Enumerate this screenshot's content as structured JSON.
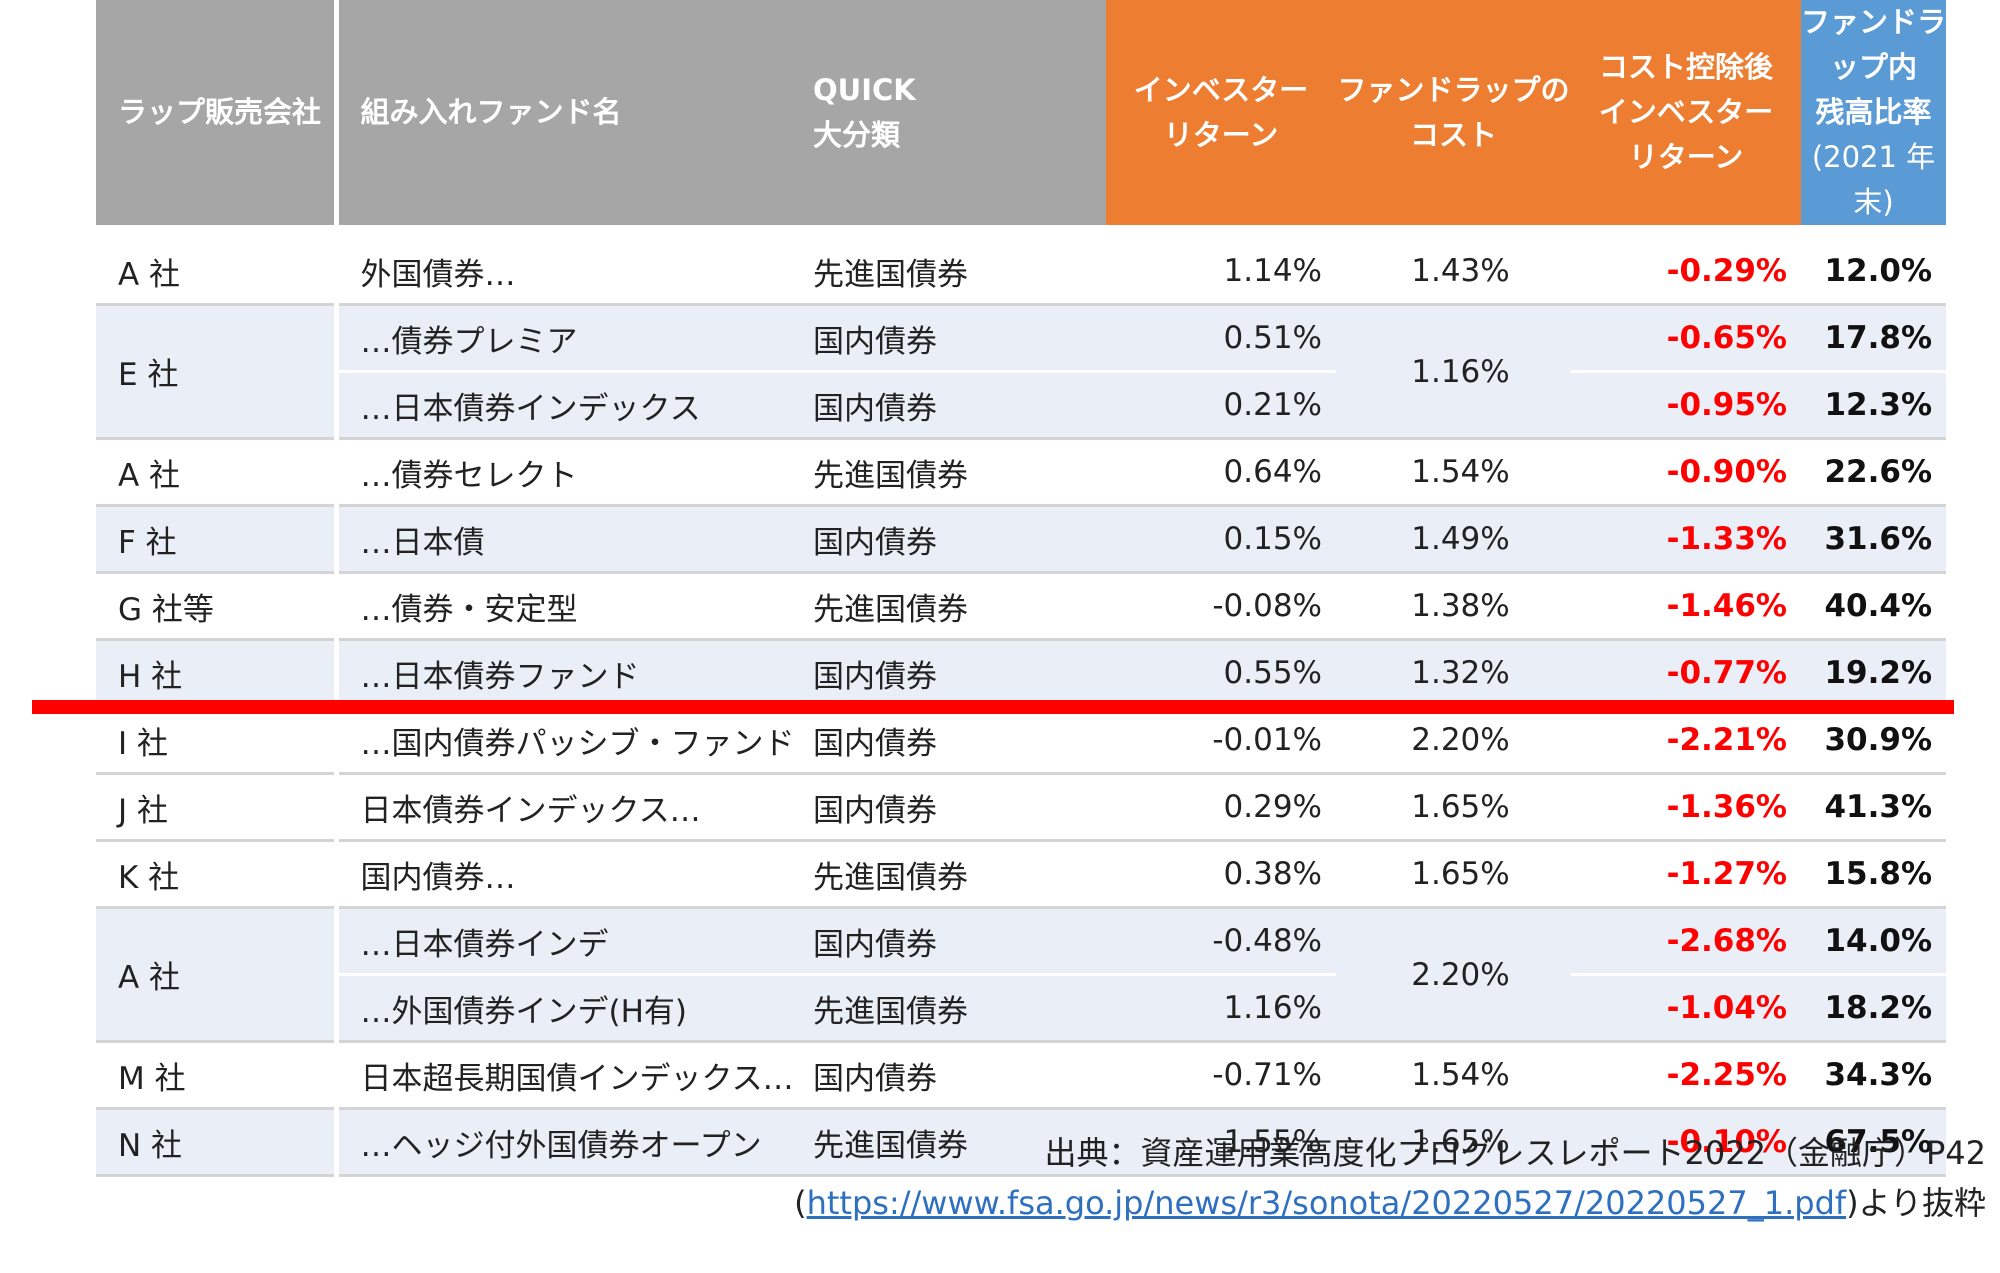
{
  "headers": {
    "company": "ラップ販売会社",
    "fund": "組み入れファンド名",
    "quick_1": "QUICK",
    "quick_2": "大分類",
    "investor_return_1": "インベスター",
    "investor_return_2": "リターン",
    "cost_1": "ファンドラップの",
    "cost_2": "コスト",
    "after_cost_1": "コスト控除後",
    "after_cost_2": "インベスター",
    "after_cost_3": "リターン",
    "ratio_1": "ファンドラップ内",
    "ratio_2": "残高比率",
    "ratio_3": "(2021 年末)"
  },
  "colors": {
    "gray_header": "#a6a6a6",
    "orange_header": "#ed7d31",
    "blue_header": "#5b9bd5",
    "negative": "#ff0000",
    "band": "#eaeff7",
    "highlight_line": "#ff0000"
  },
  "rows": [
    {
      "company": "A 社",
      "fund": "外国債券…",
      "category": "先進国債券",
      "return": "1.14%",
      "cost": "1.43%",
      "after": "-0.29%",
      "ratio": "12.0%"
    },
    {
      "company": "E 社",
      "fund": "…債券プレミア",
      "category": "国内債券",
      "return": "0.51%",
      "cost": "1.16%",
      "after": "-0.65%",
      "ratio": "17.8%"
    },
    {
      "company": "",
      "fund": "…日本債券インデックス",
      "category": "国内債券",
      "return": "0.21%",
      "cost": "",
      "after": "-0.95%",
      "ratio": "12.3%"
    },
    {
      "company": "A 社",
      "fund": "…債券セレクト",
      "category": "先進国債券",
      "return": "0.64%",
      "cost": "1.54%",
      "after": "-0.90%",
      "ratio": "22.6%"
    },
    {
      "company": "F 社",
      "fund": "…日本債",
      "category": "国内債券",
      "return": "0.15%",
      "cost": "1.49%",
      "after": "-1.33%",
      "ratio": "31.6%"
    },
    {
      "company": "G 社等",
      "fund": "…債券・安定型",
      "category": "先進国債券",
      "return": "-0.08%",
      "cost": "1.38%",
      "after": "-1.46%",
      "ratio": "40.4%"
    },
    {
      "company": "H 社",
      "fund": "…日本債券ファンド",
      "category": "国内債券",
      "return": "0.55%",
      "cost": "1.32%",
      "after": "-0.77%",
      "ratio": "19.2%"
    },
    {
      "company": "I 社",
      "fund": "…国内債券パッシブ・ファンド",
      "category": "国内債券",
      "return": "-0.01%",
      "cost": "2.20%",
      "after": "-2.21%",
      "ratio": "30.9%"
    },
    {
      "company": "J 社",
      "fund": "日本債券インデックス…",
      "category": "国内債券",
      "return": "0.29%",
      "cost": "1.65%",
      "after": "-1.36%",
      "ratio": "41.3%"
    },
    {
      "company": "K 社",
      "fund": "国内債券…",
      "category": "先進国債券",
      "return": "0.38%",
      "cost": "1.65%",
      "after": "-1.27%",
      "ratio": "15.8%"
    },
    {
      "company": "A 社",
      "fund": "…日本債券インデ",
      "category": "国内債券",
      "return": "-0.48%",
      "cost": "2.20%",
      "after": "-2.68%",
      "ratio": "14.0%"
    },
    {
      "company": "",
      "fund": "…外国債券インデ(H有)",
      "category": "先進国債券",
      "return": "1.16%",
      "cost": "",
      "after": "-1.04%",
      "ratio": "18.2%"
    },
    {
      "company": "M 社",
      "fund": "日本超長期国債インデックス…",
      "category": "国内債券",
      "return": "-0.71%",
      "cost": "1.54%",
      "after": "-2.25%",
      "ratio": "34.3%"
    },
    {
      "company": "N 社",
      "fund": "…ヘッジ付外国債券オープン",
      "category": "先進国債券",
      "return": "1.55%",
      "cost": "1.65%",
      "after": "-0.10%",
      "ratio": "67.5%"
    }
  ],
  "source": {
    "line1": "出典：資産運用業高度化プログレスレポート2022（金融庁）P42",
    "open_paren": "(",
    "url": "https://www.fsa.go.jp/news/r3/sonota/20220527/20220527_1.pdf",
    "suffix": ")より抜粋"
  }
}
